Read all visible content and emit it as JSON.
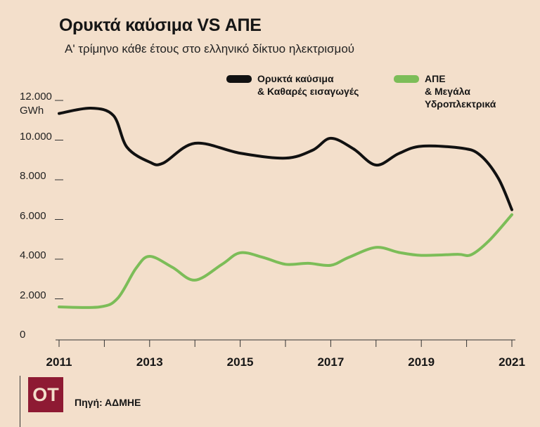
{
  "title": "Ορυκτά καύσιμα VS ΑΠΕ",
  "subtitle": "Α' τρίμηνο κάθε έτους στο ελληνικό δίκτυο ηλεκτρισμού",
  "source": "Πηγή: ΑΔΜΗΕ",
  "logo_text": "ΟΤ",
  "chart_data": {
    "type": "line",
    "title": "Ορυκτά καύσιμα VS ΑΠΕ",
    "ylabel": "GWh",
    "ylim": [
      0,
      12000
    ],
    "xlim": [
      2011,
      2021
    ],
    "y_ticks": [
      "0",
      "2.000",
      "4.000",
      "6.000",
      "8.000",
      "10.000",
      "12.000"
    ],
    "y_tick_values": [
      0,
      2000,
      4000,
      6000,
      8000,
      10000,
      12000
    ],
    "x_tick_labels": [
      "2011",
      "2013",
      "2015",
      "2017",
      "2019",
      "2021"
    ],
    "x_tick_label_values": [
      2011,
      2013,
      2015,
      2017,
      2019,
      2021
    ],
    "x_ticks": [
      2011,
      2012,
      2013,
      2014,
      2015,
      2016,
      2017,
      2018,
      2019,
      2020,
      2021
    ],
    "legend_placement": "top-right",
    "series": [
      {
        "name": "Ορυκτά καύσιμα & Καθαρές εισαγωγές",
        "legend_lines": [
          "Ορυκτά καύσιμα",
          "& Καθαρές εισαγωγές"
        ],
        "color": "#111111",
        "x": [
          2011,
          2011.7,
          2012.2,
          2012.5,
          2013,
          2013.3,
          2014,
          2015,
          2016,
          2016.6,
          2017,
          2017.5,
          2018,
          2018.5,
          2019,
          2019.9,
          2020.3,
          2020.7,
          2021
        ],
        "values": [
          11200,
          11470,
          11100,
          9500,
          8750,
          8700,
          9700,
          9200,
          8950,
          9350,
          9950,
          9420,
          8600,
          9180,
          9550,
          9450,
          9100,
          7940,
          6350
        ]
      },
      {
        "name": "ΑΠΕ & Μεγάλα Υδροπλεκτρικά",
        "legend_lines": [
          "ΑΠΕ",
          "& Μεγάλα",
          "Υδροπλεκτρικά"
        ],
        "color": "#7cbd58",
        "x": [
          2011,
          2011.9,
          2012.3,
          2012.7,
          2013,
          2013.5,
          2014,
          2014.6,
          2015,
          2015.5,
          2016,
          2016.5,
          2017,
          2017.4,
          2018,
          2018.5,
          2019,
          2019.8,
          2020.1,
          2020.5,
          2021
        ],
        "values": [
          1450,
          1450,
          1900,
          3400,
          4000,
          3450,
          2800,
          3600,
          4180,
          3950,
          3600,
          3650,
          3550,
          3950,
          4450,
          4200,
          4050,
          4100,
          4080,
          4800,
          6100
        ]
      }
    ]
  }
}
